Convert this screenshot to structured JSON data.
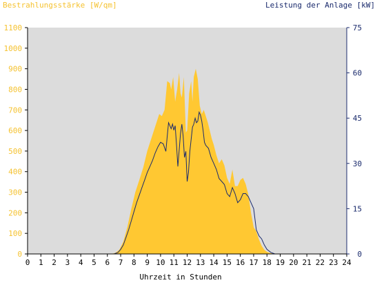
{
  "chart_data": {
    "type": "area",
    "xlabel": "Uhrzeit in Stunden",
    "ylabel_left": "Bestrahlungsstärke [W/qm]",
    "ylabel_right": "Leistung der Anlage [kW]",
    "xlim": [
      0,
      24
    ],
    "ylim_left": [
      0,
      1100
    ],
    "ylim_right": [
      0,
      75
    ],
    "x_ticks": [
      "0",
      "1",
      "2",
      "3",
      "4",
      "5",
      "6",
      "7",
      "8",
      "9",
      "10",
      "11",
      "12",
      "13",
      "14",
      "15",
      "16",
      "17",
      "18",
      "19",
      "20",
      "21",
      "22",
      "23",
      "24"
    ],
    "y_ticks_left": [
      "0",
      "100",
      "200",
      "300",
      "400",
      "500",
      "600",
      "700",
      "800",
      "900",
      "1000",
      "1100"
    ],
    "y_ticks_right": [
      "0",
      "15",
      "30",
      "45",
      "60",
      "75"
    ],
    "grid": false,
    "colors": {
      "irradiance": "#ffc832",
      "power": "#1a2a6c",
      "plot_bg": "#dcdcdc",
      "left_axis_text": "#f5c230",
      "right_axis_text": "#1a2a6c"
    },
    "series": [
      {
        "axis": "left",
        "style": "area",
        "x": [
          0,
          6.3,
          6.6,
          6.9,
          7.2,
          7.5,
          7.8,
          8.1,
          8.4,
          8.7,
          9.0,
          9.3,
          9.6,
          9.9,
          10.1,
          10.3,
          10.5,
          10.7,
          10.8,
          10.95,
          11.1,
          11.25,
          11.4,
          11.5,
          11.6,
          11.75,
          11.9,
          12.0,
          12.15,
          12.3,
          12.4,
          12.5,
          12.65,
          12.8,
          12.95,
          13.1,
          13.25,
          13.4,
          13.55,
          13.7,
          13.85,
          14.0,
          14.2,
          14.4,
          14.6,
          14.8,
          15.0,
          15.2,
          15.4,
          15.6,
          15.8,
          16.0,
          16.2,
          16.4,
          16.6,
          16.8,
          17.0,
          17.2,
          17.4,
          17.6,
          17.8,
          18.0,
          18.2,
          18.4,
          18.6,
          18.8,
          24
        ],
        "y": [
          0,
          0,
          5,
          20,
          60,
          130,
          220,
          300,
          360,
          420,
          500,
          560,
          620,
          680,
          670,
          700,
          840,
          830,
          800,
          860,
          740,
          800,
          880,
          780,
          760,
          860,
          590,
          600,
          780,
          840,
          740,
          860,
          900,
          850,
          720,
          680,
          700,
          670,
          640,
          600,
          560,
          530,
          480,
          440,
          460,
          430,
          370,
          340,
          410,
          330,
          330,
          360,
          370,
          340,
          290,
          200,
          130,
          110,
          70,
          40,
          20,
          10,
          5,
          2,
          0,
          0,
          0
        ]
      },
      {
        "axis": "right",
        "style": "line",
        "x": [
          0,
          6.5,
          6.8,
          7.0,
          7.2,
          7.4,
          7.6,
          7.8,
          8.0,
          8.2,
          8.4,
          8.6,
          8.8,
          9.0,
          9.2,
          9.4,
          9.6,
          9.8,
          10.0,
          10.2,
          10.4,
          10.5,
          10.6,
          10.7,
          10.8,
          10.9,
          11.0,
          11.1,
          11.2,
          11.3,
          11.5,
          11.6,
          11.7,
          11.8,
          11.9,
          12.0,
          12.1,
          12.2,
          12.3,
          12.4,
          12.5,
          12.6,
          12.7,
          12.8,
          12.9,
          13.0,
          13.1,
          13.2,
          13.3,
          13.4,
          13.6,
          13.8,
          14.0,
          14.2,
          14.4,
          14.6,
          14.8,
          15.0,
          15.2,
          15.4,
          15.6,
          15.8,
          16.0,
          16.2,
          16.4,
          16.6,
          16.8,
          17.0,
          17.2,
          17.4,
          17.6,
          17.8,
          18.0,
          18.3,
          18.6,
          24
        ],
        "y": [
          0,
          0,
          0.5,
          1.5,
          3,
          5.5,
          8,
          11,
          14,
          17,
          19.5,
          22,
          24.5,
          27,
          29,
          31,
          33.5,
          35.5,
          37,
          36.5,
          34,
          39,
          43.5,
          42.5,
          41.5,
          43,
          41,
          42.5,
          36,
          29,
          40,
          43,
          39,
          32,
          34,
          24,
          27,
          34,
          38,
          42,
          43,
          45,
          43.5,
          44,
          47,
          46,
          44,
          41,
          37,
          36,
          35,
          32,
          30,
          28,
          25,
          24,
          23,
          20,
          19,
          22,
          20,
          17,
          18,
          20,
          20,
          19,
          17,
          15,
          8,
          6,
          5,
          3,
          1.5,
          0.5,
          0,
          0
        ]
      }
    ]
  }
}
